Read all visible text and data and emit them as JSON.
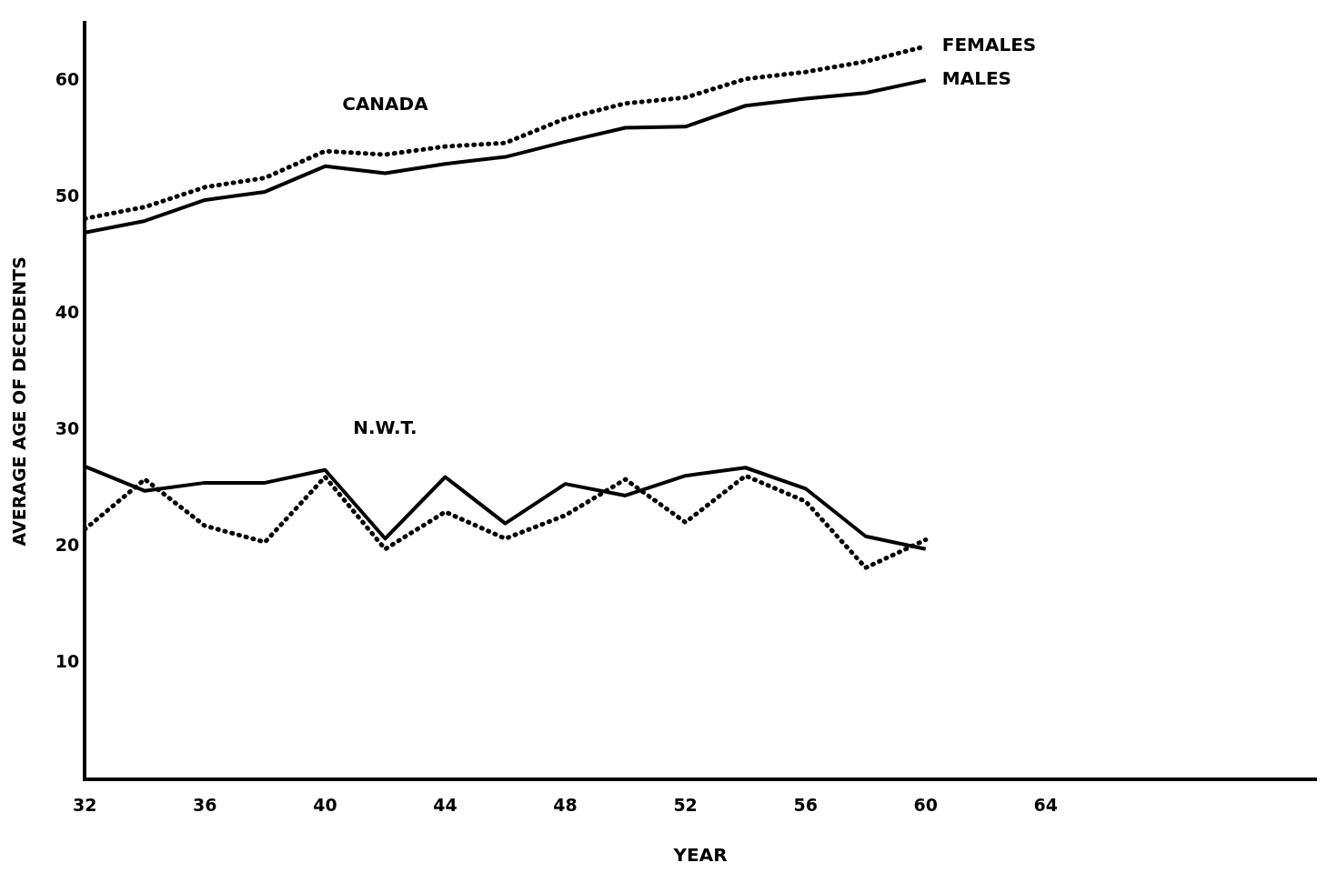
{
  "chart_data": {
    "type": "line",
    "xlabel": "YEAR",
    "ylabel": "AVERAGE AGE OF DECEDENTS",
    "x": [
      32,
      34,
      36,
      38,
      40,
      42,
      44,
      46,
      48,
      50,
      52,
      54,
      56,
      58,
      60
    ],
    "series": [
      {
        "name": "FEMALES",
        "color": "#000000",
        "line_style": "dotted",
        "values": [
          48.2,
          49.2,
          50.9,
          51.7,
          54.0,
          53.7,
          54.4,
          54.7,
          56.8,
          58.1,
          58.6,
          60.2,
          60.8,
          61.7,
          63.0
        ]
      },
      {
        "name": "MALES",
        "color": "#000000",
        "line_style": "solid",
        "values": [
          47.0,
          48.0,
          49.8,
          50.5,
          52.7,
          52.1,
          52.9,
          53.5,
          54.8,
          56.0,
          56.1,
          57.9,
          58.5,
          59.0,
          60.1
        ]
      },
      {
        "color": "#000000",
        "line_style": "solid",
        "values": [
          26.9,
          24.8,
          25.5,
          25.5,
          26.6,
          20.7,
          26.0,
          22.0,
          25.4,
          24.4,
          26.1,
          26.8,
          25.0,
          20.9,
          19.8
        ]
      },
      {
        "color": "#000000",
        "line_style": "dotted",
        "values": [
          21.5,
          25.8,
          21.8,
          20.4,
          26.0,
          19.8,
          23.0,
          20.7,
          22.7,
          25.8,
          22.1,
          26.1,
          23.9,
          18.2,
          20.6
        ]
      }
    ],
    "xlim": [
      32,
      73
    ],
    "xticks": [
      32,
      36,
      40,
      44,
      48,
      52,
      56,
      60,
      64
    ],
    "ylim": [
      0,
      65
    ],
    "yticks": [
      10,
      20,
      30,
      40,
      50,
      60
    ],
    "grid": false,
    "legend": false,
    "marker": "none",
    "annotations": [
      "CANADA",
      "N.W.T."
    ]
  }
}
